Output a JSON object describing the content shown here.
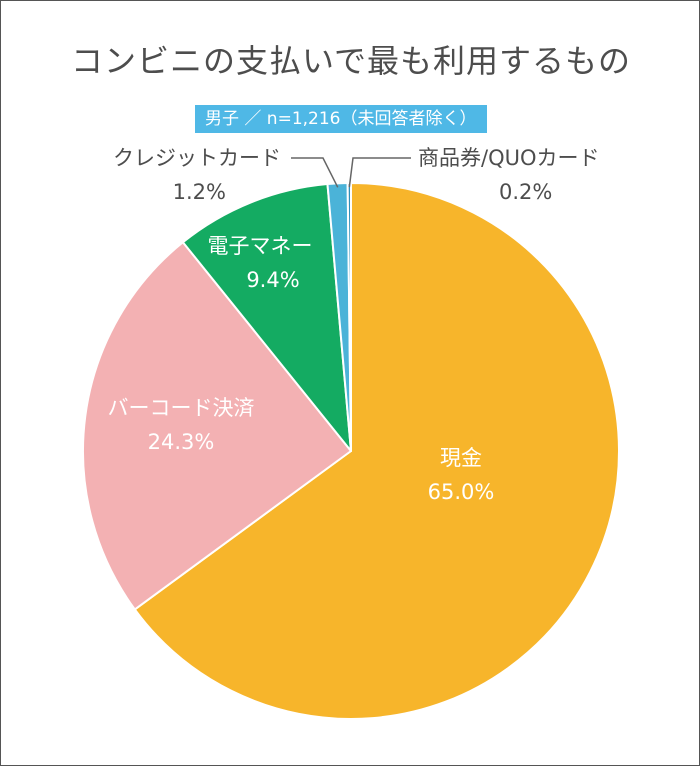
{
  "title": "コンビニの支払いで最も利用するもの",
  "subtitle": "男子 ／ n=1,216（未回答者除く）",
  "chart_data": {
    "type": "pie",
    "title": "コンビニの支払いで最も利用するもの",
    "subtitle": "男子 ／ n=1,216（未回答者除く）",
    "unit": "%",
    "slices": [
      {
        "label": "現金",
        "value": 65.0,
        "value_label": "65.0%",
        "color": "#f7b52b",
        "label_color": "#ffffff"
      },
      {
        "label": "バーコード決済",
        "value": 24.3,
        "value_label": "24.3%",
        "color": "#f3b1b3",
        "label_color": "#ffffff"
      },
      {
        "label": "電子マネー",
        "value": 9.4,
        "value_label": "9.4%",
        "color": "#14ab62",
        "label_color": "#ffffff"
      },
      {
        "label": "クレジットカード",
        "value": 1.2,
        "value_label": "1.2%",
        "color": "#4bb3d8",
        "label_color": "#4d4d4d"
      },
      {
        "label": "商品券/QUOカード",
        "value": 0.2,
        "value_label": "0.2%",
        "color": "#2f8fb8",
        "label_color": "#4d4d4d"
      }
    ]
  }
}
